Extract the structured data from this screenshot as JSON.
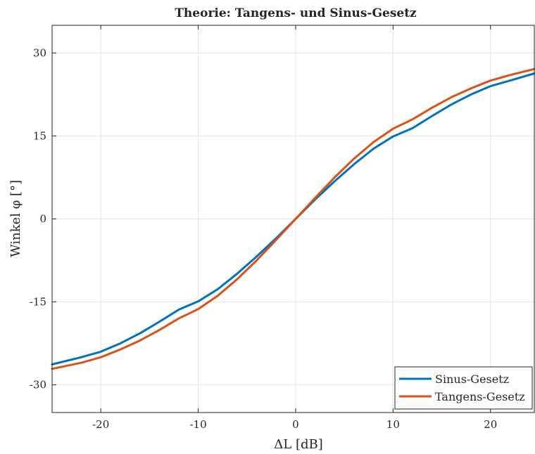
{
  "chart_data": {
    "type": "line",
    "title": "Theorie: Tangens- und Sinus-Gesetz",
    "xlabel": "ΔL [dB]",
    "ylabel": "Winkel φ [°]",
    "xlim": [
      -25,
      24.5
    ],
    "ylim": [
      -35,
      35
    ],
    "xticks": [
      -20,
      -10,
      0,
      10,
      20
    ],
    "xtick_labels": [
      "-20",
      "-10",
      "0",
      "10",
      "20"
    ],
    "yticks": [
      -30,
      -15,
      0,
      15,
      30
    ],
    "ytick_labels": [
      "-30",
      "-15",
      "0",
      "15",
      "30"
    ],
    "grid": true,
    "legend_position": "bottom-right",
    "x": [
      -25,
      -22,
      -20,
      -18,
      -16,
      -14,
      -12,
      -10,
      -8,
      -6,
      -4,
      -2,
      0,
      2,
      4,
      6,
      8,
      10,
      12,
      14,
      16,
      18,
      20,
      22,
      24.5
    ],
    "series": [
      {
        "name": "Sinus-Gesetz",
        "color": "#0072BD",
        "values": [
          -26.3,
          -25.0,
          -24.0,
          -22.5,
          -20.7,
          -18.6,
          -16.4,
          -14.9,
          -12.7,
          -9.9,
          -6.8,
          -3.5,
          0,
          3.5,
          6.8,
          9.9,
          12.7,
          14.9,
          16.4,
          18.6,
          20.7,
          22.5,
          24.0,
          25.0,
          26.3
        ]
      },
      {
        "name": "Tangens-Gesetz",
        "color": "#D95319",
        "values": [
          -27.1,
          -26.0,
          -25.0,
          -23.6,
          -22.0,
          -20.1,
          -18.0,
          -16.3,
          -13.9,
          -10.9,
          -7.5,
          -3.8,
          0,
          3.8,
          7.5,
          10.9,
          13.9,
          16.3,
          18.0,
          20.1,
          22.0,
          23.6,
          25.0,
          26.0,
          27.1
        ]
      }
    ]
  }
}
